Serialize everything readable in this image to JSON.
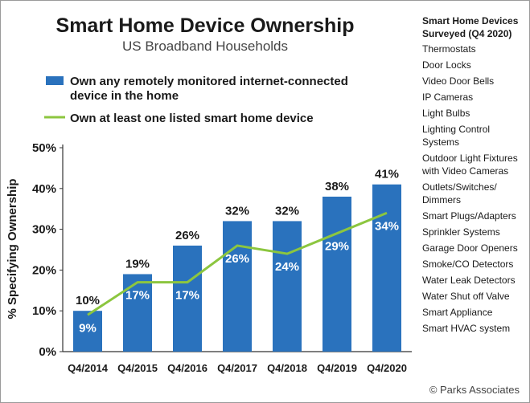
{
  "chart_data": {
    "type": "bar",
    "title": "Smart Home Device Ownership",
    "subtitle": "US Broadband Households",
    "ylabel": "% Specifying Ownership",
    "xlabel": "",
    "ylim": [
      0,
      50
    ],
    "yticks": [
      0,
      10,
      20,
      30,
      40,
      50
    ],
    "ytick_labels": [
      "0%",
      "10%",
      "20%",
      "30%",
      "40%",
      "50%"
    ],
    "grid": false,
    "legend_position": "top-left",
    "categories": [
      "Q4/2014",
      "Q4/2015",
      "Q4/2016",
      "Q4/2017",
      "Q4/2018",
      "Q4/2019",
      "Q4/2020"
    ],
    "series": [
      {
        "name": "Own any remotely monitored internet-connected device in the home",
        "name_lines": [
          "Own any remotely monitored internet-connected",
          "device in the home"
        ],
        "type": "bar",
        "color": "#2a72bd",
        "values": [
          10,
          19,
          26,
          32,
          32,
          38,
          41
        ],
        "labels": [
          "10%",
          "19%",
          "26%",
          "32%",
          "32%",
          "38%",
          "41%"
        ]
      },
      {
        "name": "Own at least one listed smart home device",
        "type": "line",
        "color": "#8cc63f",
        "values": [
          9,
          17,
          17,
          26,
          24,
          29,
          34
        ],
        "labels": [
          "9%",
          "17%",
          "17%",
          "26%",
          "24%",
          "29%",
          "34%"
        ]
      }
    ]
  },
  "sidebar": {
    "heading": [
      "Smart Home Devices",
      "Surveyed (Q4 2020)"
    ],
    "items": [
      [
        "Thermostats"
      ],
      [
        "Door Locks"
      ],
      [
        "Video Door Bells"
      ],
      [
        "IP Cameras"
      ],
      [
        "Light Bulbs"
      ],
      [
        "Lighting Control",
        "Systems"
      ],
      [
        "Outdoor Light Fixtures",
        "with Video Cameras"
      ],
      [
        "Outlets/Switches/",
        "Dimmers"
      ],
      [
        "Smart Plugs/Adapters"
      ],
      [
        "Sprinkler Systems"
      ],
      [
        "Garage Door Openers"
      ],
      [
        "Smoke/CO Detectors"
      ],
      [
        "Water Leak Detectors"
      ],
      [
        "Water Shut off Valve"
      ],
      [
        "Smart Appliance"
      ],
      [
        "Smart HVAC system"
      ]
    ]
  },
  "source": "© Parks Associates"
}
